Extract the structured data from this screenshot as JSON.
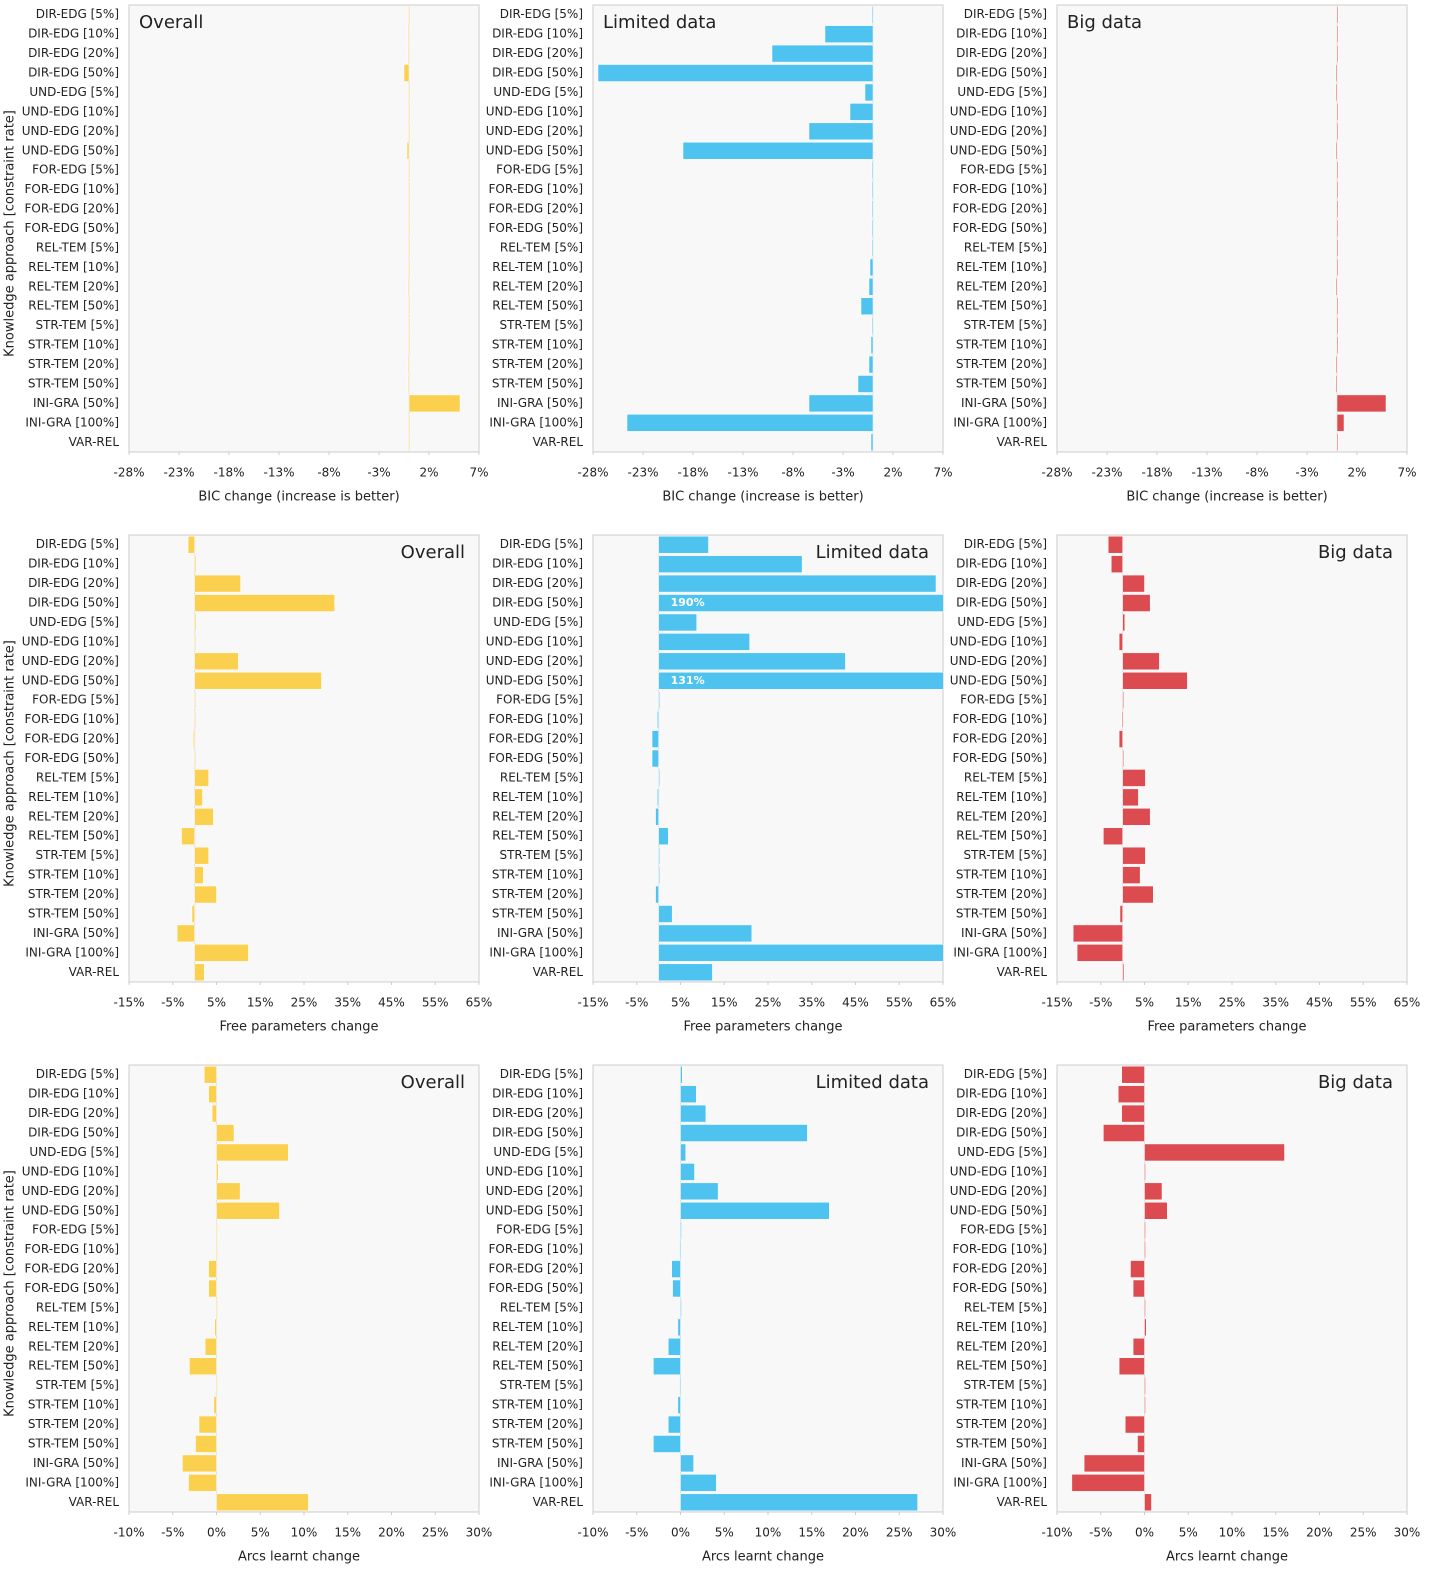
{
  "chart_data": [
    {
      "type": "bar",
      "orientation": "horizontal",
      "title": "Overall",
      "title_corner": "top-left",
      "xlabel": "BIC change (increase is better)",
      "ylabel": "Knowledge approach [constraint rate]",
      "color": "#fcd04f",
      "categories": [
        "DIR-EDG [5%]",
        "DIR-EDG [10%]",
        "DIR-EDG [20%]",
        "DIR-EDG [50%]",
        "UND-EDG [5%]",
        "UND-EDG [10%]",
        "UND-EDG [20%]",
        "UND-EDG [50%]",
        "FOR-EDG [5%]",
        "FOR-EDG [10%]",
        "FOR-EDG [20%]",
        "FOR-EDG [50%]",
        "REL-TEM [5%]",
        "REL-TEM [10%]",
        "REL-TEM [20%]",
        "REL-TEM [50%]",
        "STR-TEM [5%]",
        "STR-TEM [10%]",
        "STR-TEM [20%]",
        "STR-TEM [50%]",
        "INI-GRA [50%]",
        "INI-GRA [100%]",
        "VAR-REL"
      ],
      "values": [
        0,
        -0.1,
        -0.1,
        -0.5,
        0,
        0,
        0,
        -0.2,
        0,
        0,
        0,
        0,
        0,
        0,
        -0.1,
        0,
        0,
        0,
        -0.1,
        -0.1,
        5.1,
        0.1,
        0.1
      ],
      "xlim": [
        -28,
        7
      ],
      "xticks": [
        {
          "value": -28,
          "label": "-28%"
        },
        {
          "value": -23,
          "label": "-23%"
        },
        {
          "value": -18,
          "label": "-18%"
        },
        {
          "value": -13,
          "label": "-13%"
        },
        {
          "value": -8,
          "label": "-8%"
        },
        {
          "value": -3,
          "label": "-3%"
        },
        {
          "value": 2,
          "label": "2%"
        },
        {
          "value": 7,
          "label": "7%"
        }
      ]
    },
    {
      "type": "bar",
      "orientation": "horizontal",
      "title": "Limited data",
      "title_corner": "top-left",
      "xlabel": "BIC change (increase is better)",
      "color": "#4fc3f0",
      "categories": [
        "DIR-EDG [5%]",
        "DIR-EDG [10%]",
        "DIR-EDG [20%]",
        "DIR-EDG [50%]",
        "UND-EDG [5%]",
        "UND-EDG [10%]",
        "UND-EDG [20%]",
        "UND-EDG [50%]",
        "FOR-EDG [5%]",
        "FOR-EDG [10%]",
        "FOR-EDG [20%]",
        "FOR-EDG [50%]",
        "REL-TEM [5%]",
        "REL-TEM [10%]",
        "REL-TEM [20%]",
        "REL-TEM [50%]",
        "STR-TEM [5%]",
        "STR-TEM [10%]",
        "STR-TEM [20%]",
        "STR-TEM [50%]",
        "INI-GRA [50%]",
        "INI-GRA [100%]",
        "VAR-REL"
      ],
      "values": [
        -0.1,
        -4.8,
        -10.1,
        -27.5,
        -0.8,
        -2.3,
        -6.4,
        -19,
        -0.1,
        -0.1,
        -0.1,
        -0.1,
        -0.1,
        -0.3,
        -0.4,
        -1.2,
        -0.1,
        -0.2,
        -0.4,
        -1.5,
        -6.4,
        -24.6,
        -0.2
      ],
      "xlim": [
        -28,
        7
      ],
      "xticks": [
        {
          "value": -28,
          "label": "-28%"
        },
        {
          "value": -23,
          "label": "-23%"
        },
        {
          "value": -18,
          "label": "-18%"
        },
        {
          "value": -13,
          "label": "-13%"
        },
        {
          "value": -8,
          "label": "-8%"
        },
        {
          "value": -3,
          "label": "-3%"
        },
        {
          "value": 2,
          "label": "2%"
        },
        {
          "value": 7,
          "label": "7%"
        }
      ]
    },
    {
      "type": "bar",
      "orientation": "horizontal",
      "title": "Big data",
      "title_corner": "top-left",
      "xlabel": "BIC change (increase is better)",
      "color": "#dc4b4f",
      "categories": [
        "DIR-EDG [5%]",
        "DIR-EDG [10%]",
        "DIR-EDG [20%]",
        "DIR-EDG [50%]",
        "UND-EDG [5%]",
        "UND-EDG [10%]",
        "UND-EDG [20%]",
        "UND-EDG [50%]",
        "FOR-EDG [5%]",
        "FOR-EDG [10%]",
        "FOR-EDG [20%]",
        "FOR-EDG [50%]",
        "REL-TEM [5%]",
        "REL-TEM [10%]",
        "REL-TEM [20%]",
        "REL-TEM [50%]",
        "STR-TEM [5%]",
        "STR-TEM [10%]",
        "STR-TEM [20%]",
        "STR-TEM [50%]",
        "INI-GRA [50%]",
        "INI-GRA [100%]",
        "VAR-REL"
      ],
      "values": [
        0,
        0,
        0,
        -0.1,
        -0.1,
        0,
        0,
        -0.1,
        0,
        0,
        0,
        0,
        0,
        0,
        -0.1,
        0,
        0,
        0,
        -0.1,
        -0.1,
        4.9,
        0.7,
        0
      ],
      "xlim": [
        -28,
        7
      ],
      "xticks": [
        {
          "value": -28,
          "label": "-28%"
        },
        {
          "value": -23,
          "label": "-23%"
        },
        {
          "value": -18,
          "label": "-18%"
        },
        {
          "value": -13,
          "label": "-13%"
        },
        {
          "value": -8,
          "label": "-8%"
        },
        {
          "value": -3,
          "label": "-3%"
        },
        {
          "value": 2,
          "label": "2%"
        },
        {
          "value": 7,
          "label": "7%"
        }
      ]
    },
    {
      "type": "bar",
      "orientation": "horizontal",
      "title": "Overall",
      "title_corner": "top-right",
      "xlabel": "Free parameters change",
      "ylabel": "Knowledge approach [constraint rate]",
      "color": "#fcd04f",
      "categories": [
        "DIR-EDG [5%]",
        "DIR-EDG [10%]",
        "DIR-EDG [20%]",
        "DIR-EDG [50%]",
        "UND-EDG [5%]",
        "UND-EDG [10%]",
        "UND-EDG [20%]",
        "UND-EDG [50%]",
        "FOR-EDG [5%]",
        "FOR-EDG [10%]",
        "FOR-EDG [20%]",
        "FOR-EDG [50%]",
        "REL-TEM [5%]",
        "REL-TEM [10%]",
        "REL-TEM [20%]",
        "REL-TEM [50%]",
        "STR-TEM [5%]",
        "STR-TEM [10%]",
        "STR-TEM [20%]",
        "STR-TEM [50%]",
        "INI-GRA [50%]",
        "INI-GRA [100%]",
        "VAR-REL"
      ],
      "values": [
        -1.5,
        0.3,
        10.5,
        32,
        0.3,
        0,
        10,
        29,
        0,
        0,
        -0.3,
        0,
        3.2,
        1.8,
        4.3,
        -3,
        3.2,
        2,
        5,
        -0.6,
        -4,
        12.3,
        2.2
      ],
      "xlim": [
        -15,
        65
      ],
      "xticks": [
        {
          "value": -15,
          "label": "-15%"
        },
        {
          "value": -5,
          "label": "-5%"
        },
        {
          "value": 5,
          "label": "5%"
        },
        {
          "value": 15,
          "label": "15%"
        },
        {
          "value": 25,
          "label": "25%"
        },
        {
          "value": 35,
          "label": "35%"
        },
        {
          "value": 45,
          "label": "45%"
        },
        {
          "value": 55,
          "label": "55%"
        },
        {
          "value": 65,
          "label": "65%"
        }
      ]
    },
    {
      "type": "bar",
      "orientation": "horizontal",
      "title": "Limited data",
      "title_corner": "top-right",
      "xlabel": "Free parameters change",
      "color": "#4fc3f0",
      "categories": [
        "DIR-EDG [5%]",
        "DIR-EDG [10%]",
        "DIR-EDG [20%]",
        "DIR-EDG [50%]",
        "UND-EDG [5%]",
        "UND-EDG [10%]",
        "UND-EDG [20%]",
        "UND-EDG [50%]",
        "FOR-EDG [5%]",
        "FOR-EDG [10%]",
        "FOR-EDG [20%]",
        "FOR-EDG [50%]",
        "REL-TEM [5%]",
        "REL-TEM [10%]",
        "REL-TEM [20%]",
        "REL-TEM [50%]",
        "STR-TEM [5%]",
        "STR-TEM [10%]",
        "STR-TEM [20%]",
        "STR-TEM [50%]",
        "INI-GRA [50%]",
        "INI-GRA [100%]",
        "VAR-REL"
      ],
      "values": [
        11.4,
        32.8,
        63.4,
        190,
        8.7,
        20.8,
        42.7,
        131,
        0,
        -0.3,
        -1.5,
        -1.5,
        0,
        -0.3,
        -0.7,
        2.2,
        0,
        0,
        -0.7,
        3.1,
        21.3,
        66,
        12.3
      ],
      "value_labels": [
        null,
        null,
        null,
        "190%",
        null,
        null,
        null,
        "131%",
        null,
        null,
        null,
        null,
        null,
        null,
        null,
        null,
        null,
        null,
        null,
        null,
        null,
        null,
        null
      ],
      "xlim": [
        -15,
        65
      ],
      "xticks": [
        {
          "value": -15,
          "label": "-15%"
        },
        {
          "value": -5,
          "label": "-5%"
        },
        {
          "value": 5,
          "label": "5%"
        },
        {
          "value": 15,
          "label": "15%"
        },
        {
          "value": 25,
          "label": "25%"
        },
        {
          "value": 35,
          "label": "35%"
        },
        {
          "value": 45,
          "label": "45%"
        },
        {
          "value": 55,
          "label": "55%"
        },
        {
          "value": 65,
          "label": "65%"
        }
      ]
    },
    {
      "type": "bar",
      "orientation": "horizontal",
      "title": "Big data",
      "title_corner": "top-right",
      "xlabel": "Free parameters change",
      "color": "#dc4b4f",
      "categories": [
        "DIR-EDG [5%]",
        "DIR-EDG [10%]",
        "DIR-EDG [20%]",
        "DIR-EDG [50%]",
        "UND-EDG [5%]",
        "UND-EDG [10%]",
        "UND-EDG [20%]",
        "UND-EDG [50%]",
        "FOR-EDG [5%]",
        "FOR-EDG [10%]",
        "FOR-EDG [20%]",
        "FOR-EDG [50%]",
        "REL-TEM [5%]",
        "REL-TEM [10%]",
        "REL-TEM [20%]",
        "REL-TEM [50%]",
        "STR-TEM [5%]",
        "STR-TEM [10%]",
        "STR-TEM [20%]",
        "STR-TEM [50%]",
        "INI-GRA [50%]",
        "INI-GRA [100%]",
        "VAR-REL"
      ],
      "values": [
        -3.3,
        -2.6,
        5,
        6.3,
        0.5,
        -0.8,
        8.4,
        14.8,
        0,
        -0.2,
        -0.8,
        0,
        5.2,
        3.6,
        6.3,
        -4.4,
        5.2,
        4,
        7,
        -0.6,
        -11.3,
        -10.4,
        0.3
      ],
      "xlim": [
        -15,
        65
      ],
      "xticks": [
        {
          "value": -15,
          "label": "-15%"
        },
        {
          "value": -5,
          "label": "-5%"
        },
        {
          "value": 5,
          "label": "5%"
        },
        {
          "value": 15,
          "label": "15%"
        },
        {
          "value": 25,
          "label": "25%"
        },
        {
          "value": 35,
          "label": "35%"
        },
        {
          "value": 45,
          "label": "45%"
        },
        {
          "value": 55,
          "label": "55%"
        },
        {
          "value": 65,
          "label": "65%"
        }
      ]
    },
    {
      "type": "bar",
      "orientation": "horizontal",
      "title": "Overall",
      "title_corner": "top-right",
      "xlabel": "Arcs learnt change",
      "ylabel": "Knowledge approach [constraint rate]",
      "color": "#fcd04f",
      "categories": [
        "DIR-EDG [5%]",
        "DIR-EDG [10%]",
        "DIR-EDG [20%]",
        "DIR-EDG [50%]",
        "UND-EDG [5%]",
        "UND-EDG [10%]",
        "UND-EDG [20%]",
        "UND-EDG [50%]",
        "FOR-EDG [5%]",
        "FOR-EDG [10%]",
        "FOR-EDG [20%]",
        "FOR-EDG [50%]",
        "REL-TEM [5%]",
        "REL-TEM [10%]",
        "REL-TEM [20%]",
        "REL-TEM [50%]",
        "STR-TEM [5%]",
        "STR-TEM [10%]",
        "STR-TEM [20%]",
        "STR-TEM [50%]",
        "INI-GRA [50%]",
        "INI-GRA [100%]",
        "VAR-REL"
      ],
      "values": [
        -1.4,
        -0.9,
        -0.5,
        2,
        8.2,
        0.2,
        2.7,
        7.2,
        0,
        0,
        -0.9,
        -0.9,
        0,
        -0.2,
        -1.3,
        -3.1,
        0,
        -0.3,
        -2,
        -2.4,
        -3.9,
        -3.2,
        10.5
      ],
      "xlim": [
        -10,
        30
      ],
      "xticks": [
        {
          "value": -10,
          "label": "-10%"
        },
        {
          "value": -5,
          "label": "-5%"
        },
        {
          "value": 0,
          "label": "0%"
        },
        {
          "value": 5,
          "label": "5%"
        },
        {
          "value": 10,
          "label": "10%"
        },
        {
          "value": 15,
          "label": "15%"
        },
        {
          "value": 20,
          "label": "20%"
        },
        {
          "value": 25,
          "label": "25%"
        },
        {
          "value": 30,
          "label": "30%"
        }
      ]
    },
    {
      "type": "bar",
      "orientation": "horizontal",
      "title": "Limited data",
      "title_corner": "top-right",
      "xlabel": "Arcs learnt change",
      "color": "#4fc3f0",
      "categories": [
        "DIR-EDG [5%]",
        "DIR-EDG [10%]",
        "DIR-EDG [20%]",
        "DIR-EDG [50%]",
        "UND-EDG [5%]",
        "UND-EDG [10%]",
        "UND-EDG [20%]",
        "UND-EDG [50%]",
        "FOR-EDG [5%]",
        "FOR-EDG [10%]",
        "FOR-EDG [20%]",
        "FOR-EDG [50%]",
        "REL-TEM [5%]",
        "REL-TEM [10%]",
        "REL-TEM [20%]",
        "REL-TEM [50%]",
        "STR-TEM [5%]",
        "STR-TEM [10%]",
        "STR-TEM [20%]",
        "STR-TEM [50%]",
        "INI-GRA [50%]",
        "INI-GRA [100%]",
        "VAR-REL"
      ],
      "values": [
        0.2,
        1.8,
        2.9,
        14.5,
        0.6,
        1.6,
        4.3,
        17,
        0,
        -0.1,
        -1,
        -0.9,
        0,
        -0.3,
        -1.4,
        -3.1,
        -0.1,
        -0.3,
        -1.4,
        -3.1,
        1.5,
        4.1,
        27.1
      ],
      "xlim": [
        -10,
        30
      ],
      "xticks": [
        {
          "value": -10,
          "label": "-10%"
        },
        {
          "value": -5,
          "label": "-5%"
        },
        {
          "value": 0,
          "label": "0%"
        },
        {
          "value": 5,
          "label": "5%"
        },
        {
          "value": 10,
          "label": "10%"
        },
        {
          "value": 15,
          "label": "15%"
        },
        {
          "value": 20,
          "label": "20%"
        },
        {
          "value": 25,
          "label": "25%"
        },
        {
          "value": 30,
          "label": "30%"
        }
      ]
    },
    {
      "type": "bar",
      "orientation": "horizontal",
      "title": "Big data",
      "title_corner": "top-right",
      "xlabel": "Arcs learnt change",
      "color": "#dc4b4f",
      "categories": [
        "DIR-EDG [5%]",
        "DIR-EDG [10%]",
        "DIR-EDG [20%]",
        "DIR-EDG [50%]",
        "UND-EDG [5%]",
        "UND-EDG [10%]",
        "UND-EDG [20%]",
        "UND-EDG [50%]",
        "FOR-EDG [5%]",
        "FOR-EDG [10%]",
        "FOR-EDG [20%]",
        "FOR-EDG [50%]",
        "REL-TEM [5%]",
        "REL-TEM [10%]",
        "REL-TEM [20%]",
        "REL-TEM [50%]",
        "STR-TEM [5%]",
        "STR-TEM [10%]",
        "STR-TEM [20%]",
        "STR-TEM [50%]",
        "INI-GRA [50%]",
        "INI-GRA [100%]",
        "VAR-REL"
      ],
      "values": [
        -2.6,
        -3,
        -2.6,
        -4.7,
        16,
        0,
        2,
        2.6,
        0,
        0.1,
        -1.6,
        -1.3,
        0.1,
        0.2,
        -1.3,
        -2.9,
        0.1,
        0,
        -2.2,
        -0.8,
        -6.9,
        -8.3,
        0.8
      ],
      "xlim": [
        -10,
        30
      ],
      "xticks": [
        {
          "value": -10,
          "label": "-10%"
        },
        {
          "value": -5,
          "label": "-5%"
        },
        {
          "value": 0,
          "label": "0%"
        },
        {
          "value": 5,
          "label": "5%"
        },
        {
          "value": 10,
          "label": "10%"
        },
        {
          "value": 15,
          "label": "15%"
        },
        {
          "value": 20,
          "label": "20%"
        },
        {
          "value": 25,
          "label": "25%"
        },
        {
          "value": 30,
          "label": "30%"
        }
      ]
    }
  ]
}
